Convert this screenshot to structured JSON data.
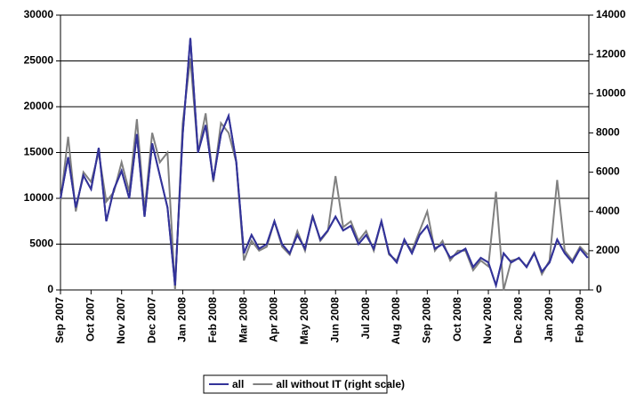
{
  "chart_data": {
    "type": "line",
    "categories": [
      "Sep 2007",
      null,
      null,
      null,
      "Oct 2007",
      null,
      null,
      null,
      "Nov 2007",
      null,
      null,
      null,
      "Dec 2007",
      null,
      null,
      null,
      "Jan 2008",
      null,
      null,
      null,
      "Feb 2008",
      null,
      null,
      null,
      "Mar 2008",
      null,
      null,
      null,
      "Apr 2008",
      null,
      null,
      null,
      "May 2008",
      null,
      null,
      null,
      "Jun 2008",
      null,
      null,
      null,
      "Jul 2008",
      null,
      null,
      null,
      "Aug 2008",
      null,
      null,
      null,
      "Sep 2008",
      null,
      null,
      null,
      "Oct 2008",
      null,
      null,
      null,
      "Nov 2008",
      null,
      null,
      null,
      "Dec 2008",
      null,
      null,
      null,
      "Jan 2009",
      null,
      null,
      null,
      "Feb 2009",
      null
    ],
    "series": [
      {
        "name": "all",
        "color": "#333399",
        "values": [
          10000,
          14500,
          9000,
          12500,
          11000,
          15500,
          7500,
          11000,
          13000,
          10000,
          17000,
          8000,
          16000,
          12500,
          9000,
          500,
          17000,
          27500,
          15000,
          18000,
          12000,
          17000,
          19000,
          14000,
          4000,
          6000,
          4500,
          5000,
          7500,
          5000,
          4000,
          6000,
          4500,
          8000,
          5500,
          6500,
          8000,
          6500,
          7000,
          5000,
          6000,
          4500,
          7500,
          4000,
          3000,
          5500,
          4000,
          6000,
          7000,
          4500,
          5000,
          3500,
          4000,
          4500,
          2500,
          3500,
          3000,
          500,
          4000,
          3000,
          3500,
          2500,
          4000,
          2000,
          3000,
          5500,
          4000,
          3000,
          4500,
          3500
        ]
      },
      {
        "name": "all without IT (right scale)",
        "color": "#808080",
        "axis": "y2",
        "values": [
          4500,
          7800,
          4000,
          6000,
          5500,
          7000,
          4500,
          5000,
          6500,
          5000,
          8700,
          4000,
          8000,
          6500,
          7000,
          0,
          8500,
          11800,
          7000,
          9000,
          5500,
          8500,
          8000,
          6500,
          1500,
          2500,
          2000,
          2200,
          3500,
          2200,
          1800,
          3000,
          2000,
          3800,
          2500,
          3000,
          5800,
          3200,
          3500,
          2500,
          3000,
          2000,
          3500,
          1800,
          1500,
          2500,
          2000,
          3000,
          4000,
          2000,
          2500,
          1500,
          2000,
          2000,
          1000,
          1500,
          1200,
          5000,
          0,
          1500,
          1600,
          1200,
          1900,
          800,
          1500,
          5600,
          2000,
          1500,
          2200,
          1800
        ]
      }
    ],
    "ylim": [
      0,
      30000
    ],
    "yticks": [
      0,
      5000,
      10000,
      15000,
      20000,
      25000,
      30000
    ],
    "y2lim": [
      0,
      14000
    ],
    "y2ticks": [
      0,
      2000,
      4000,
      6000,
      8000,
      10000,
      12000,
      14000
    ],
    "grid": true,
    "legend": "bottom"
  }
}
